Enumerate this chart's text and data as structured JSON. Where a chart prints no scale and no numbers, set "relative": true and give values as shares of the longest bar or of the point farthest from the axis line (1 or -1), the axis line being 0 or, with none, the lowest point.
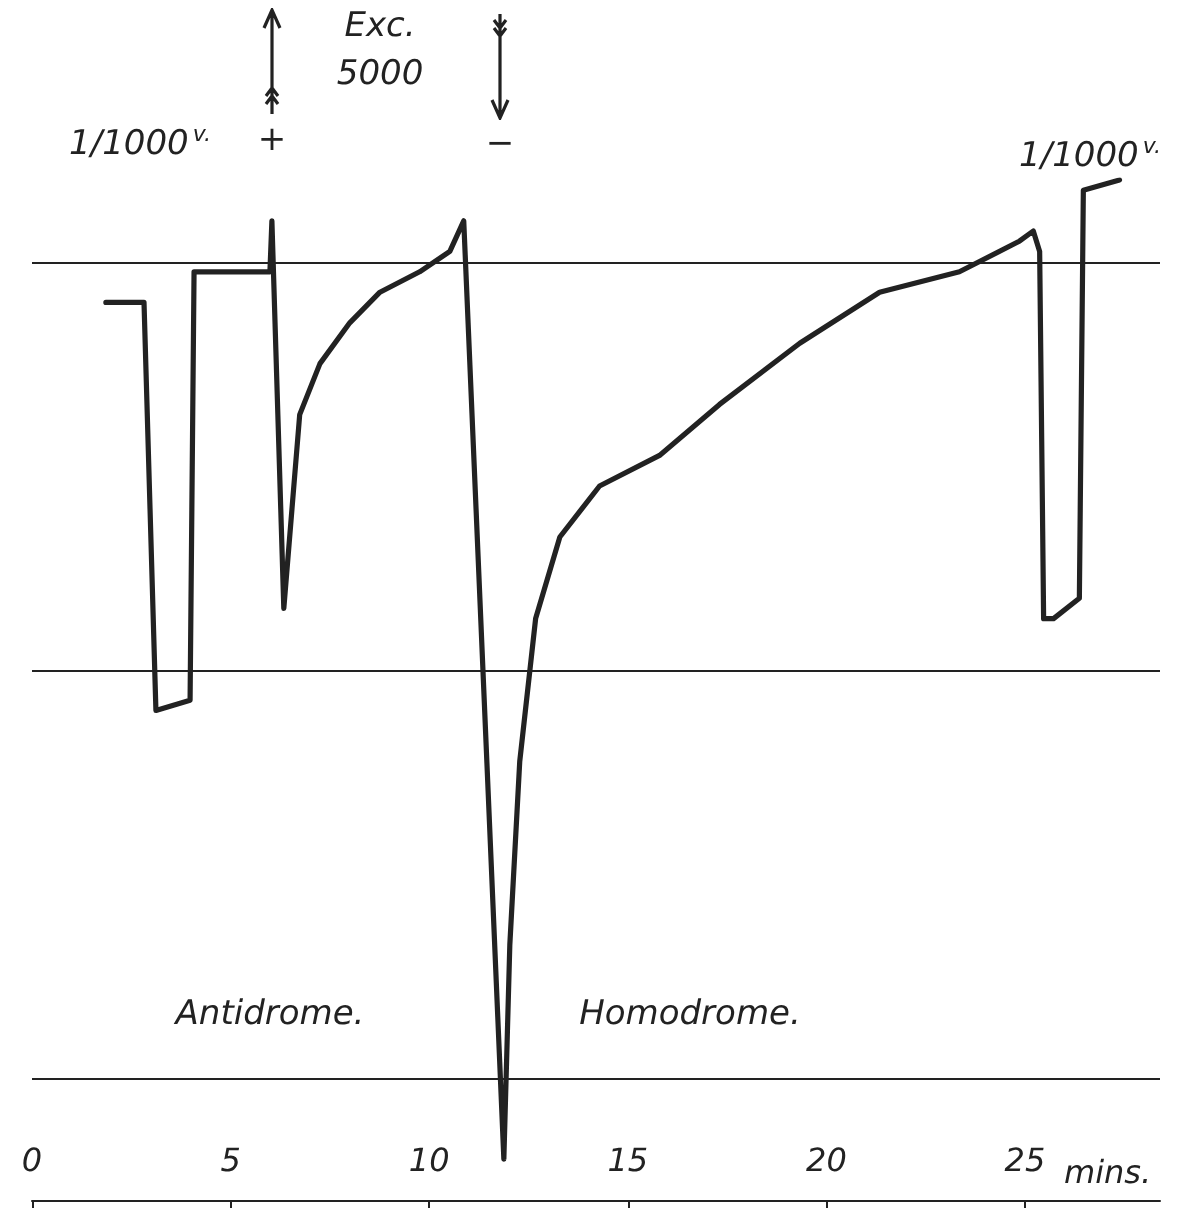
{
  "chart_data": {
    "type": "line",
    "relative": true,
    "xlabel": "mins.",
    "xlim": [
      0,
      28.4
    ],
    "xticks": [
      0,
      5,
      10,
      15,
      20,
      25
    ],
    "x": [
      1.86,
      2.82,
      3.12,
      3.98,
      4.08,
      5.99,
      6.04,
      6.34,
      6.74,
      7.25,
      8.0,
      8.76,
      9.76,
      10.52,
      10.87,
      11.88,
      12.03,
      12.28,
      12.68,
      13.29,
      14.29,
      15.8,
      17.31,
      19.33,
      21.34,
      23.35,
      24.86,
      25.21,
      25.37,
      25.47,
      25.72,
      26.37,
      26.47,
      27.38
    ],
    "series": [
      {
        "color": "#222222",
        "values": [
          0.88,
          0.88,
          0.48,
          0.49,
          0.91,
          0.91,
          0.96,
          0.58,
          0.77,
          0.82,
          0.86,
          0.89,
          0.91,
          0.93,
          0.96,
          0.04,
          0.25,
          0.43,
          0.57,
          0.65,
          0.7,
          0.73,
          0.78,
          0.84,
          0.89,
          0.91,
          0.94,
          0.95,
          0.93,
          0.57,
          0.57,
          0.59,
          0.99,
          1
        ]
      }
    ],
    "ref_lines": [
      {
        "axis": "y",
        "value": 0.92,
        "color": "#222222"
      },
      {
        "axis": "y",
        "value": 0.52,
        "color": "#222222"
      },
      {
        "axis": "y",
        "value": 0.12,
        "color": "#222222"
      }
    ],
    "annotations": [
      "1/1000$^{v.}$",
      "+",
      "Exc.\n5000",
      "−",
      "1/1000$^{v.}$",
      "Antidrome.",
      "Homodrome."
    ]
  }
}
